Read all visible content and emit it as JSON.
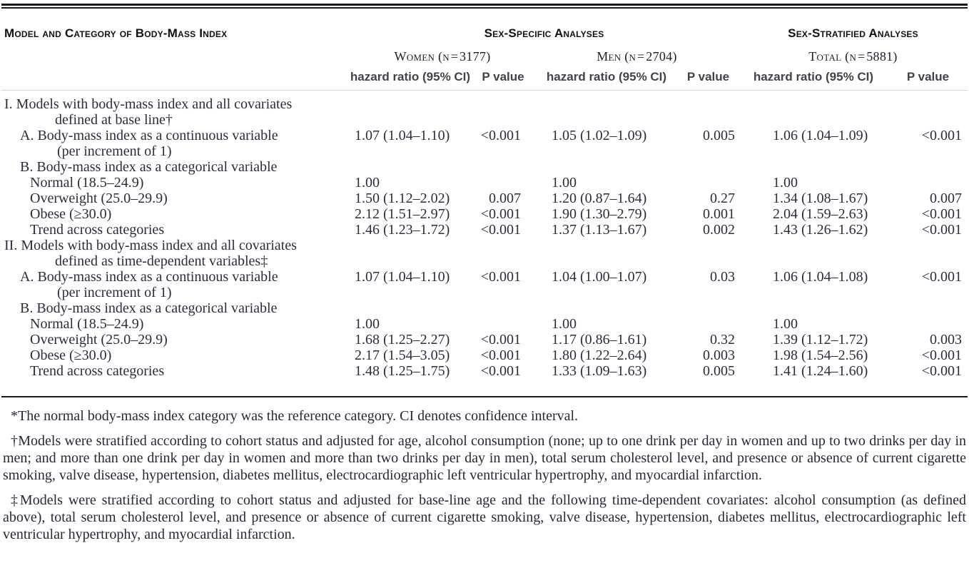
{
  "header": {
    "model_label": "Model and Category of Body-Mass Index",
    "sex_specific": "Sex-Specific Analyses",
    "sex_stratified": "Sex-Stratified Analyses",
    "women": "Women (n = 3177)",
    "men": "Men (n = 2704)",
    "total": "Total (n = 5881)",
    "hazard": "hazard ratio (95% CI)",
    "pvalue": "P value"
  },
  "rows": [
    {
      "label": "I. Models with body-mass index and all covariates",
      "label2": "defined at base line†"
    },
    {
      "label": "A. Body-mass index as a continuous variable",
      "label2": "(per increment of 1)",
      "whr": "1.07 (1.04–1.10)",
      "wp": "<0.001",
      "mhr": "1.05 (1.02–1.09)",
      "mp": "0.005",
      "thr": "1.06 (1.04–1.09)",
      "tp": "<0.001"
    },
    {
      "label": "B. Body-mass index as a categorical variable"
    },
    {
      "label": "Normal (18.5–24.9)",
      "whr": "1.00",
      "mhr": "1.00",
      "thr": "1.00"
    },
    {
      "label": "Overweight (25.0–29.9)",
      "whr": "1.50 (1.12–2.02)",
      "wp": "0.007",
      "mhr": "1.20 (0.87–1.64)",
      "mp": "0.27",
      "thr": "1.34 (1.08–1.67)",
      "tp": "0.007"
    },
    {
      "label": "Obese (≥30.0)",
      "whr": "2.12 (1.51–2.97)",
      "wp": "<0.001",
      "mhr": "1.90 (1.30–2.79)",
      "mp": "0.001",
      "thr": "2.04 (1.59–2.63)",
      "tp": "<0.001"
    },
    {
      "label": "Trend across categories",
      "whr": "1.46 (1.23–1.72)",
      "wp": "<0.001",
      "mhr": "1.37 (1.13–1.67)",
      "mp": "0.002",
      "thr": "1.43 (1.26–1.62)",
      "tp": "<0.001"
    },
    {
      "label": "II. Models with body-mass index and all covariates",
      "label2": "defined as time-dependent variables‡"
    },
    {
      "label": "A. Body-mass index as a continuous variable",
      "label2": "(per increment of 1)",
      "whr": "1.07 (1.04–1.10)",
      "wp": "<0.001",
      "mhr": "1.04 (1.00–1.07)",
      "mp": "0.03",
      "thr": "1.06 (1.04–1.08)",
      "tp": "<0.001"
    },
    {
      "label": "B. Body-mass index as a categorical variable"
    },
    {
      "label": "Normal (18.5–24.9)",
      "whr": "1.00",
      "mhr": "1.00",
      "thr": "1.00"
    },
    {
      "label": "Overweight (25.0–29.9)",
      "whr": "1.68 (1.25–2.27)",
      "wp": "<0.001",
      "mhr": "1.17 (0.86–1.61)",
      "mp": "0.32",
      "thr": "1.39 (1.12–1.72)",
      "tp": "0.003"
    },
    {
      "label": "Obese (≥30.0)",
      "whr": "2.17 (1.54–3.05)",
      "wp": "<0.001",
      "mhr": "1.80 (1.22–2.64)",
      "mp": "0.003",
      "thr": "1.98 (1.54–2.56)",
      "tp": "<0.001"
    },
    {
      "label": "Trend across categories",
      "whr": "1.48 (1.25–1.75)",
      "wp": "<0.001",
      "mhr": "1.33 (1.09–1.63)",
      "mp": "0.005",
      "thr": "1.41 (1.24–1.60)",
      "tp": "<0.001"
    }
  ],
  "footnotes": {
    "star": "*The normal body-mass index category was the reference category. CI denotes confidence interval.",
    "dagger": "†Models were stratified according to cohort status and adjusted for age, alcohol consumption (none; up to one drink per day in women and up to two drinks per day in men; and more than one drink per day in women and more than two drinks per day in men), total serum cholesterol level, and presence or absence of current cigarette smoking, valve disease, hypertension, diabetes mellitus, electrocardiographic left ventricular hypertrophy, and myocardial infarction.",
    "ddagger": "‡Models were stratified according to cohort status and adjusted for base-line age and the following time-dependent covariates: alcohol consumption (as defined above), total serum cholesterol level, and presence or absence of current cigarette smoking, valve disease, hypertension, diabetes mellitus, electrocardiographic left ventricular hypertrophy, and myocardial infarction."
  }
}
